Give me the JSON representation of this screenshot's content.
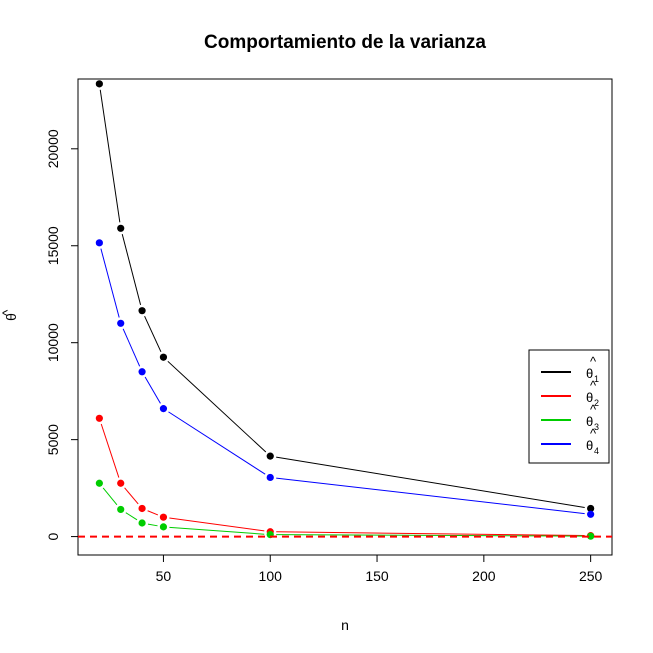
{
  "chart_data": {
    "type": "line",
    "title": "Comportamiento de la varianza",
    "xlabel": "n",
    "ylabel": "θ",
    "ylabel_accent": "^",
    "xlim": [
      10,
      260
    ],
    "ylim": [
      -950,
      23600
    ],
    "xticks": [
      50,
      100,
      150,
      200,
      250
    ],
    "yticks": [
      0,
      5000,
      10000,
      15000,
      20000
    ],
    "x": [
      20,
      30,
      40,
      50,
      100,
      250
    ],
    "reference_line": {
      "y": 0,
      "color": "#ff0000",
      "style": "dashed"
    },
    "legend_position": "right",
    "series": [
      {
        "name": "θ",
        "name_accent": "^",
        "name_sub": "1",
        "color": "#000000",
        "values": [
          23350,
          15900,
          11650,
          9250,
          4150,
          1450
        ]
      },
      {
        "name": "θ",
        "name_accent": "^",
        "name_sub": "2",
        "color": "#ff0000",
        "values": [
          6100,
          2750,
          1450,
          1000,
          250,
          50
        ]
      },
      {
        "name": "θ",
        "name_accent": "^",
        "name_sub": "3",
        "color": "#00cd00",
        "values": [
          2750,
          1400,
          700,
          500,
          100,
          20
        ]
      },
      {
        "name": "θ",
        "name_accent": "^",
        "name_sub": "4",
        "color": "#0000ff",
        "values": [
          15150,
          11000,
          8500,
          6600,
          3050,
          1150
        ]
      }
    ]
  }
}
